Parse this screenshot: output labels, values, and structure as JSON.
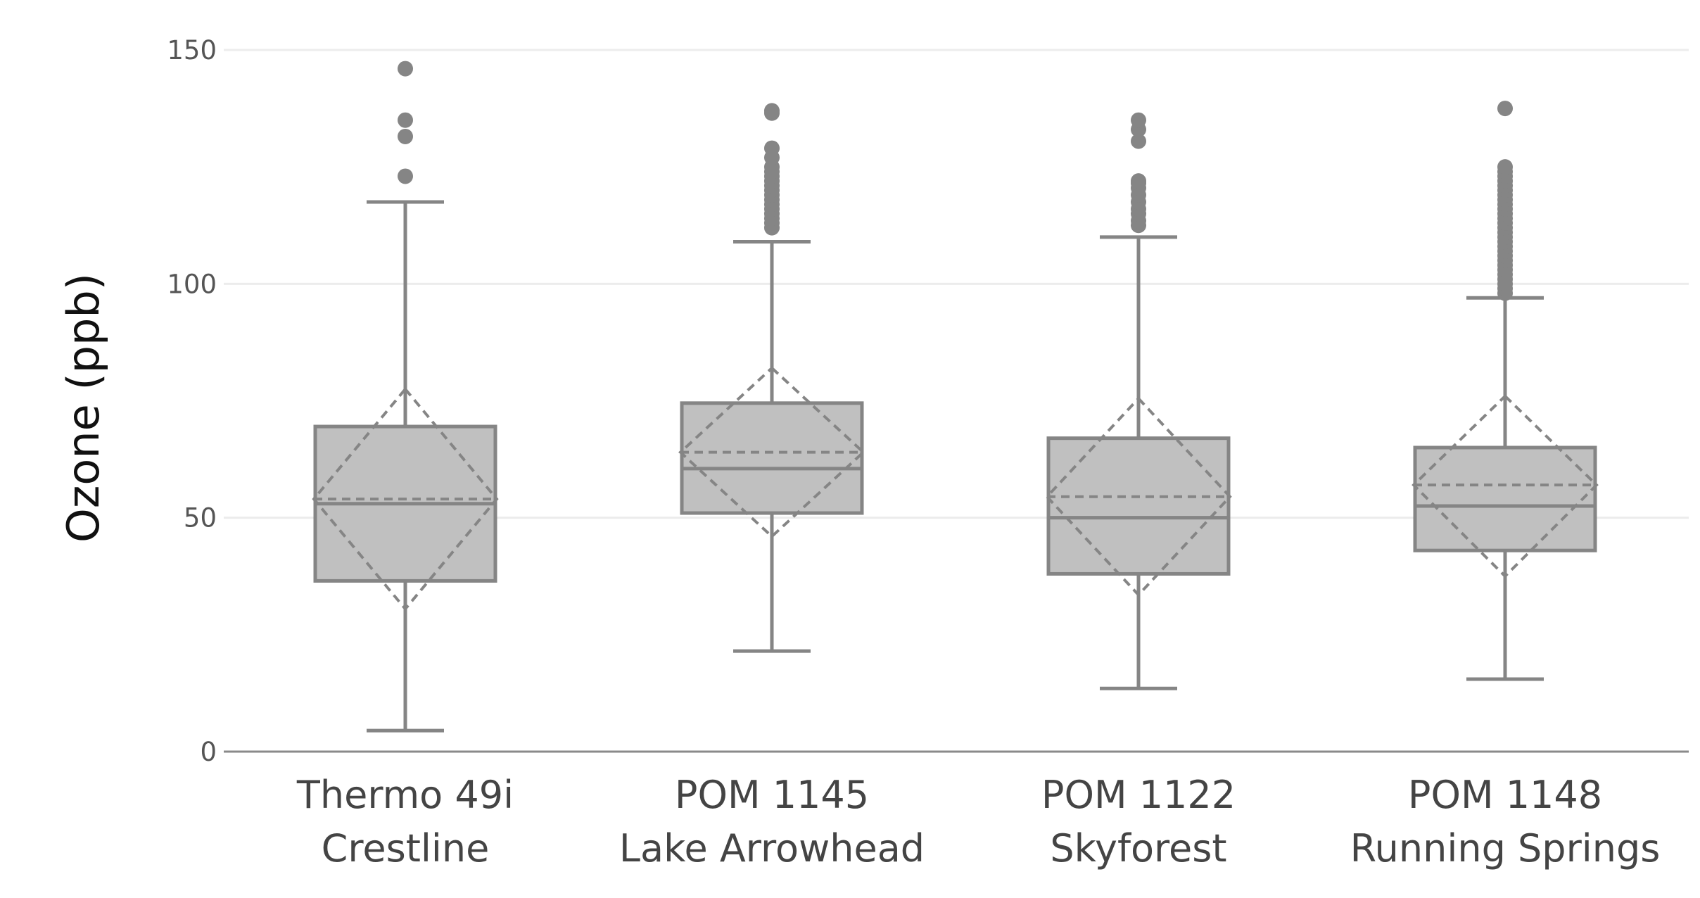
{
  "colors": {
    "box_fill": "#c0c0c0",
    "box_stroke": "#858585",
    "grid": "#ececec",
    "axis_line": "#8a8a8a"
  },
  "chart_data": {
    "type": "box",
    "ylabel": "Ozone (ppb)",
    "xlabel": "",
    "ylim": [
      0,
      150
    ],
    "yticks": [
      0,
      50,
      100,
      150
    ],
    "grid": true,
    "categories": [
      [
        "Thermo 49i",
        "Crestline"
      ],
      [
        "POM 1145",
        "Lake Arrowhead"
      ],
      [
        "POM 1122",
        "Skyforest"
      ],
      [
        "POM 1148",
        "Running Springs"
      ]
    ],
    "boxes": [
      {
        "q1": 36.5,
        "median": 53,
        "q3": 69.5,
        "whisker_low": 4.5,
        "whisker_high": 117.5,
        "mean": 54,
        "mean_minus_sd": 30.5,
        "mean_plus_sd": 77.5,
        "outliers": [
          123,
          131.5,
          135,
          146
        ]
      },
      {
        "q1": 51,
        "median": 60.5,
        "q3": 74.5,
        "whisker_low": 21.5,
        "whisker_high": 109,
        "mean": 64,
        "mean_minus_sd": 46,
        "mean_plus_sd": 82,
        "outliers": [
          112,
          113,
          114,
          115,
          116,
          117,
          118,
          119,
          120,
          121,
          122,
          123,
          124,
          125,
          127,
          129,
          136.5,
          137
        ]
      },
      {
        "q1": 38,
        "median": 50,
        "q3": 67,
        "whisker_low": 13.5,
        "whisker_high": 110,
        "mean": 54.5,
        "mean_minus_sd": 33.5,
        "mean_plus_sd": 75.5,
        "outliers": [
          112.5,
          113.5,
          115,
          116,
          117.5,
          119,
          120.5,
          121.5,
          122,
          130.5,
          133,
          135
        ]
      },
      {
        "q1": 43,
        "median": 52.5,
        "q3": 65,
        "whisker_low": 15.5,
        "whisker_high": 97,
        "mean": 57,
        "mean_minus_sd": 37.5,
        "mean_plus_sd": 76,
        "outliers": [
          98,
          99,
          100,
          101,
          102,
          103,
          104,
          105,
          106,
          107,
          108,
          109,
          110,
          111,
          112,
          113,
          114,
          115,
          116,
          117,
          118,
          119,
          120,
          121,
          122,
          123,
          124,
          125,
          137.5
        ]
      }
    ]
  }
}
